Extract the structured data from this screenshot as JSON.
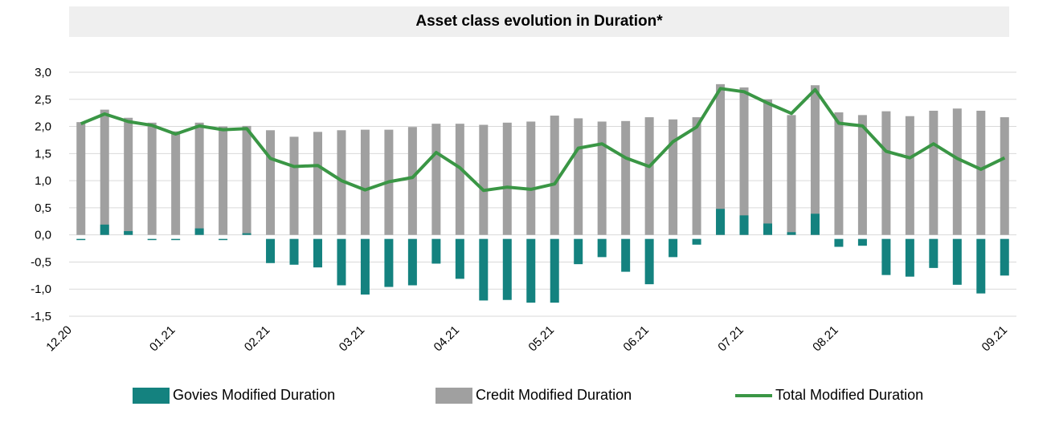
{
  "chart_data": {
    "type": "bar",
    "title": "Asset class evolution in Duration*",
    "yticks": [
      "3,0",
      "2,5",
      "2,0",
      "1,5",
      "1,0",
      "0,5",
      "0,0",
      "-0,5",
      "-1,0",
      "-1,5"
    ],
    "ytick_values": [
      3.0,
      2.5,
      2.0,
      1.5,
      1.0,
      0.5,
      0.0,
      -0.5,
      -1.0,
      -1.5
    ],
    "ylim": [
      -1.5,
      3.0
    ],
    "xtick_labels": [
      "12.20",
      "01.21",
      "02.21",
      "03.21",
      "04.21",
      "05.21",
      "06.21",
      "07.21",
      "08.21",
      "09.21"
    ],
    "xtick_index": [
      0,
      4,
      8,
      12,
      16,
      20,
      24,
      28,
      32,
      36
    ],
    "grid": true,
    "legend_position": "bottom",
    "series": [
      {
        "name": "Govies Modified Duration",
        "color": "#14827f",
        "values": [
          -0.04,
          0.19,
          0.07,
          -0.05,
          -0.04,
          0.12,
          -0.04,
          0.03,
          -0.52,
          -0.55,
          -0.6,
          -0.93,
          -1.1,
          -0.96,
          -0.93,
          -0.53,
          -0.81,
          -1.21,
          -1.2,
          -1.25,
          -1.25,
          -0.54,
          -0.41,
          -0.68,
          -0.91,
          -0.41,
          -0.18,
          0.48,
          0.36,
          0.21,
          0.05,
          0.39,
          -0.22,
          -0.2,
          -0.74,
          -0.77,
          -0.61,
          -0.92,
          -1.08,
          -0.75
        ]
      },
      {
        "name": "Credit Modified Duration",
        "color": "#a0a0a0",
        "values": [
          2.08,
          2.31,
          2.16,
          2.07,
          1.91,
          2.07,
          2.0,
          2.01,
          1.93,
          1.81,
          1.9,
          1.93,
          1.94,
          1.94,
          1.99,
          2.05,
          2.05,
          2.03,
          2.07,
          2.09,
          2.2,
          2.15,
          2.09,
          2.1,
          2.17,
          2.13,
          2.17,
          2.78,
          2.72,
          2.5,
          2.21,
          2.76,
          2.26,
          2.21,
          2.28,
          2.19,
          2.29,
          2.33,
          2.29,
          2.17
        ]
      },
      {
        "name": "Total Modified Duration",
        "color": "#3a9645",
        "values": [
          2.05,
          2.23,
          2.09,
          2.02,
          1.86,
          2.01,
          1.94,
          1.96,
          1.41,
          1.26,
          1.28,
          1.0,
          0.83,
          0.98,
          1.06,
          1.52,
          1.24,
          0.82,
          0.88,
          0.84,
          0.94,
          1.6,
          1.68,
          1.42,
          1.26,
          1.72,
          1.99,
          2.7,
          2.64,
          2.43,
          2.24,
          2.68,
          2.06,
          2.01,
          1.54,
          1.42,
          1.68,
          1.41,
          1.21,
          1.42
        ]
      }
    ]
  }
}
